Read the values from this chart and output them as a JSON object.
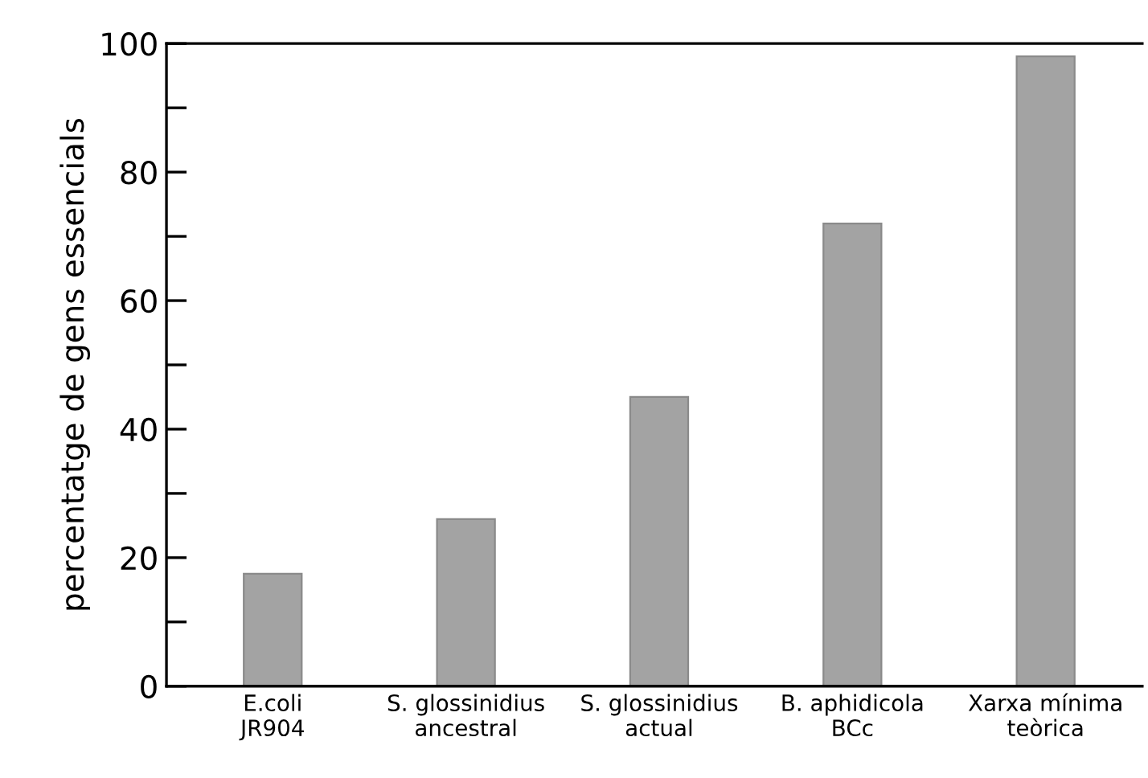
{
  "chart_data": {
    "type": "bar",
    "ylabel": "percentatge de gens essencials",
    "categories": [
      "E.coli\nJR904",
      "S. glossinidius\nancestral",
      "S. glossinidius\nactual",
      "B. aphidicola\nBCc",
      "Xarxa mínima\nteòrica"
    ],
    "values": [
      17.5,
      26,
      45,
      72,
      98
    ],
    "color": "#a3a3a3",
    "ylim": [
      0,
      100
    ],
    "yticks": [
      0,
      {
        "value": 10,
        "label": null
      },
      20,
      {
        "value": 30,
        "label": null
      },
      40,
      {
        "value": 50,
        "label": null
      },
      60,
      {
        "value": 70,
        "label": null
      },
      80,
      {
        "value": 90,
        "label": null
      },
      100
    ],
    "grid": false
  }
}
